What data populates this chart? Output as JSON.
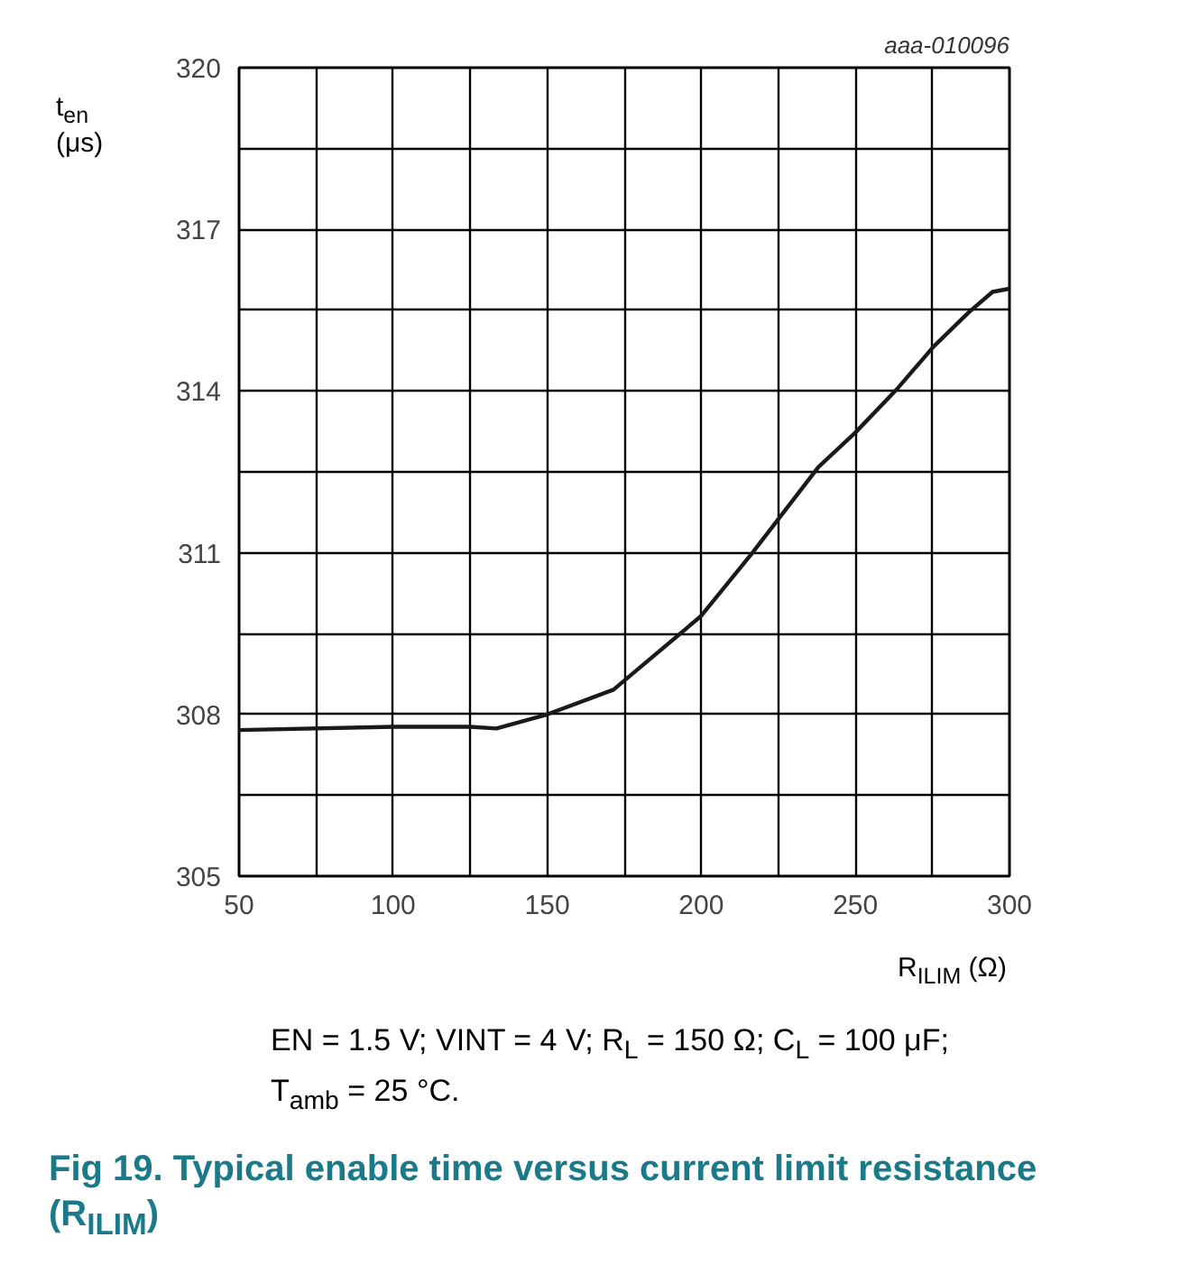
{
  "chart_data": {
    "type": "line",
    "title": "Fig 19.  Typical enable time versus current limit resistance (R$_{ILIM}$)",
    "xlabel": "R$_{ILIM}$ (Ω)",
    "ylabel": "t$_{en}$\n(μs)",
    "annotations": [
      "aaa-010096",
      "EN = 1.5 V; VINT = 4 V; R$_{L}$ = 150 Ω; C$_{L}$ = 100 μF;\nT$_{amb}$ = 25 °C."
    ],
    "x": [
      50,
      100,
      125,
      133.5,
      150,
      171.5,
      200,
      216.6,
      238,
      250,
      263.7,
      275.3,
      286.8,
      294.5,
      300
    ],
    "series": [
      {
        "color": "#1a1a1a",
        "values": [
          307.71,
          307.77,
          307.77,
          307.74,
          308.0,
          308.46,
          309.83,
          311.0,
          312.59,
          313.23,
          314.05,
          314.82,
          315.46,
          315.84,
          315.9
        ]
      }
    ],
    "xlim": [
      50,
      300
    ],
    "ylim": [
      305,
      320
    ],
    "xticks": [
      50,
      {
        "value": 75,
        "label": null
      },
      100,
      {
        "value": 125,
        "label": null
      },
      150,
      {
        "value": 175,
        "label": null
      },
      200,
      {
        "value": 225,
        "label": null
      },
      250,
      {
        "value": 275,
        "label": null
      },
      300
    ],
    "yticks": [
      305,
      {
        "value": 306.5,
        "label": null
      },
      308,
      {
        "value": 309.5,
        "label": null
      },
      311,
      {
        "value": 312.5,
        "label": null
      },
      314,
      {
        "value": 315.5,
        "label": null
      },
      317,
      {
        "value": 318.5,
        "label": null
      },
      320
    ],
    "grid": true,
    "marker": "none",
    "line_style": "solid"
  }
}
